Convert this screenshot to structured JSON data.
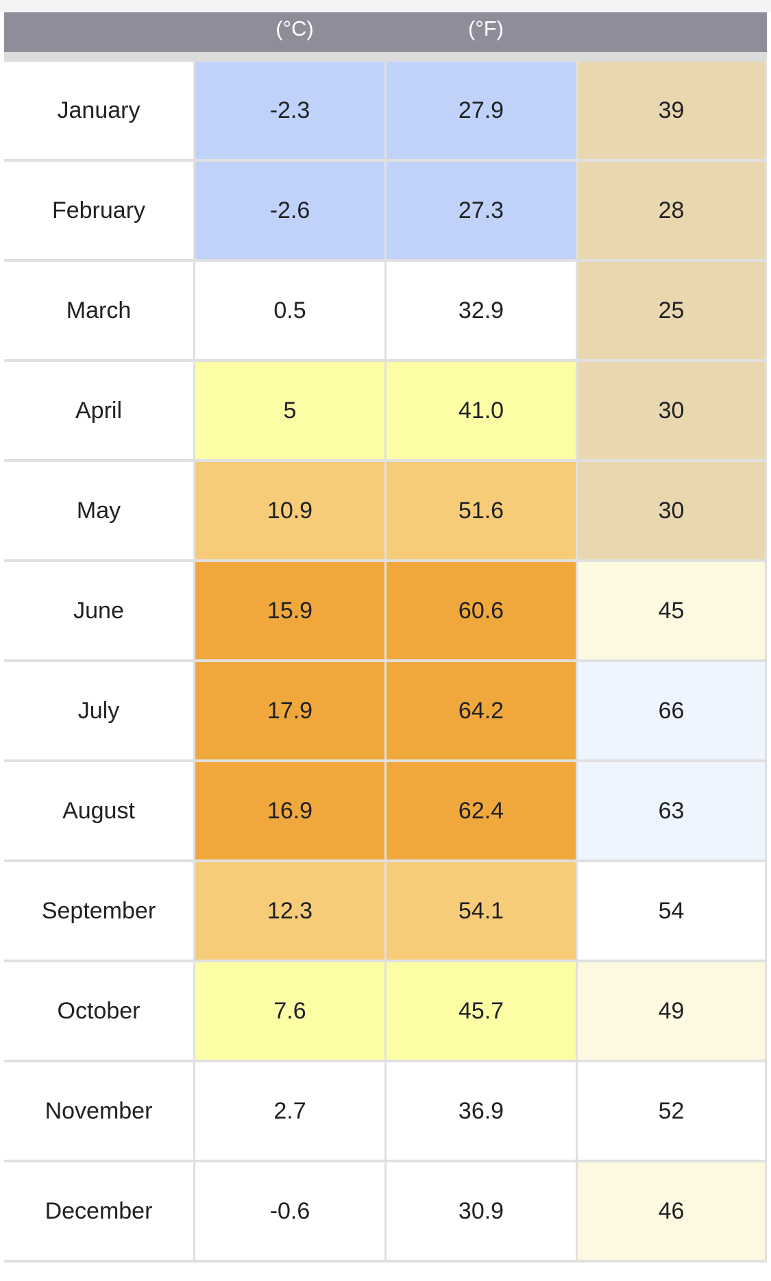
{
  "header": {
    "celsius_unit": "(°C)",
    "fahrenheit_unit": "(°F)"
  },
  "colors": {
    "header_bg": "#908d9b",
    "cold": "#c1d2fa",
    "neutral": "#ffffff",
    "mild": "#fdfda6",
    "warm": "#f6cc78",
    "hot": "#f0a83c",
    "dry": "#e9d7b0",
    "cream": "#fdf8e0",
    "light_blue": "#eff5fe"
  },
  "rows": [
    {
      "month": "January",
      "c": "-2.3",
      "f": "27.9",
      "v": "39",
      "temp_color": "#c1d2fa",
      "v_color": "#e9d7b0"
    },
    {
      "month": "February",
      "c": "-2.6",
      "f": "27.3",
      "v": "28",
      "temp_color": "#c1d2fa",
      "v_color": "#e9d7b0"
    },
    {
      "month": "March",
      "c": "0.5",
      "f": "32.9",
      "v": "25",
      "temp_color": "#ffffff",
      "v_color": "#e9d7b0"
    },
    {
      "month": "April",
      "c": "5",
      "f": "41.0",
      "v": "30",
      "temp_color": "#fdfda6",
      "v_color": "#e9d7b0"
    },
    {
      "month": "May",
      "c": "10.9",
      "f": "51.6",
      "v": "30",
      "temp_color": "#f6cc78",
      "v_color": "#e9d7b0"
    },
    {
      "month": "June",
      "c": "15.9",
      "f": "60.6",
      "v": "45",
      "temp_color": "#f0a83c",
      "v_color": "#fdf8e0"
    },
    {
      "month": "July",
      "c": "17.9",
      "f": "64.2",
      "v": "66",
      "temp_color": "#f0a83c",
      "v_color": "#eff5fe"
    },
    {
      "month": "August",
      "c": "16.9",
      "f": "62.4",
      "v": "63",
      "temp_color": "#f0a83c",
      "v_color": "#eff5fe"
    },
    {
      "month": "September",
      "c": "12.3",
      "f": "54.1",
      "v": "54",
      "temp_color": "#f6cc78",
      "v_color": "#ffffff"
    },
    {
      "month": "October",
      "c": "7.6",
      "f": "45.7",
      "v": "49",
      "temp_color": "#fdfda6",
      "v_color": "#fdf8e0"
    },
    {
      "month": "November",
      "c": "2.7",
      "f": "36.9",
      "v": "52",
      "temp_color": "#ffffff",
      "v_color": "#ffffff"
    },
    {
      "month": "December",
      "c": "-0.6",
      "f": "30.9",
      "v": "46",
      "temp_color": "#ffffff",
      "v_color": "#fdf8e0"
    }
  ]
}
